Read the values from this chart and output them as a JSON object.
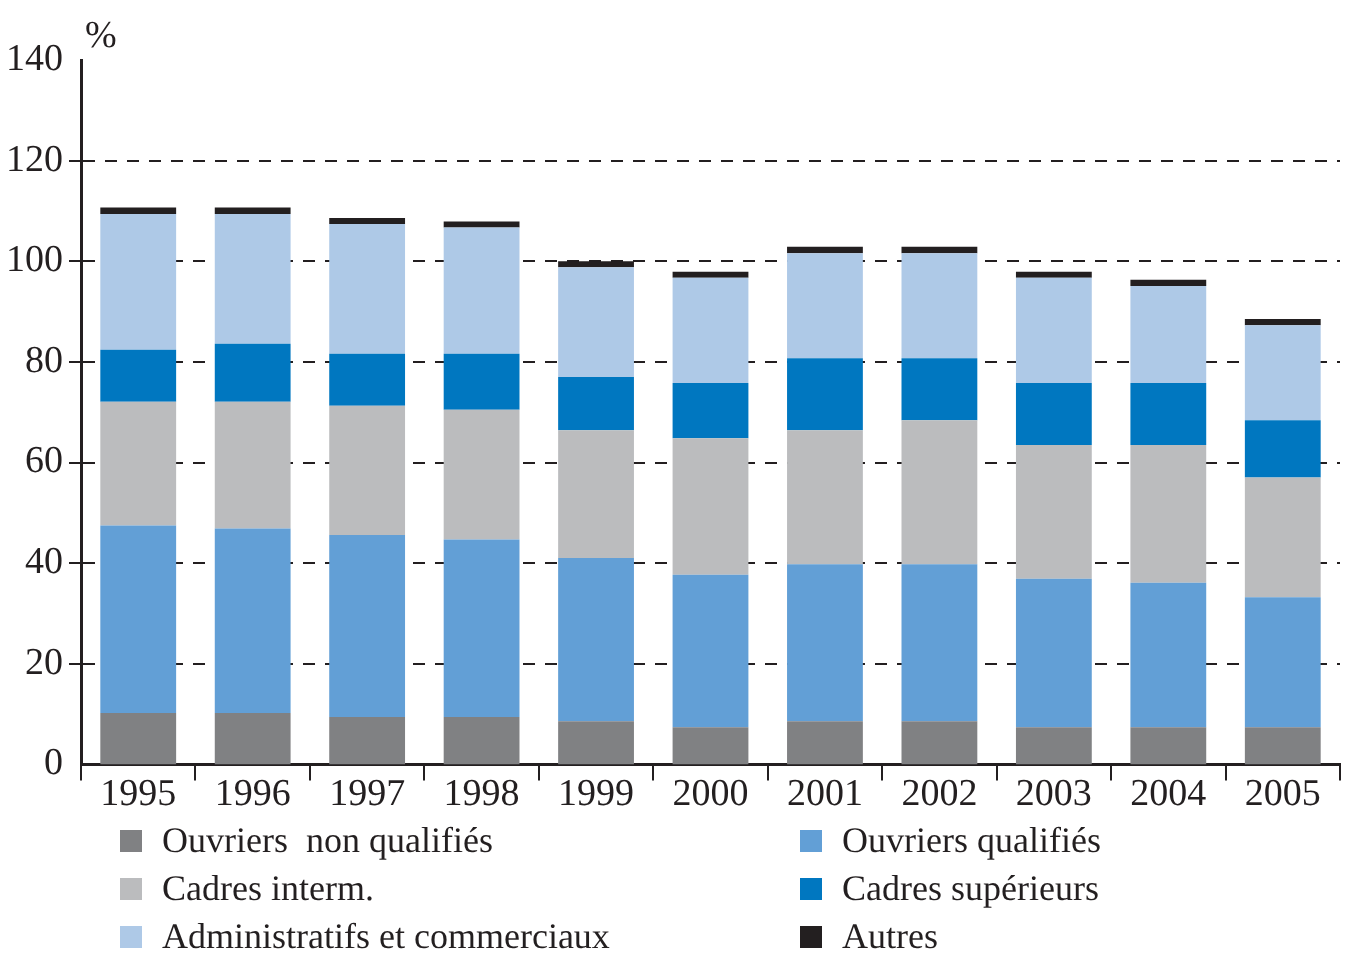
{
  "chart_data": {
    "type": "bar",
    "stacked": true,
    "ylabel": "%",
    "categories": [
      "1995",
      "1996",
      "1997",
      "1998",
      "1999",
      "2000",
      "2001",
      "2002",
      "2003",
      "2004",
      "2005"
    ],
    "ylim": [
      0,
      140
    ],
    "yticks": [
      0,
      20,
      40,
      60,
      80,
      100,
      120,
      140
    ],
    "grid": "y",
    "legend": "bottom",
    "series": [
      {
        "name": "Ouvriers  non qualifiés",
        "color": "#808183",
        "values": [
          10.2,
          10.2,
          9.4,
          9.4,
          8.6,
          7.4,
          8.6,
          8.6,
          7.4,
          7.4,
          7.4
        ]
      },
      {
        "name": "Ouvriers qualifiés",
        "color": "#629fd6",
        "values": [
          37.3,
          36.7,
          36.2,
          35.3,
          32.4,
          30.3,
          31.2,
          31.2,
          29.5,
          28.7,
          25.8
        ]
      },
      {
        "name": "Cadres interm.",
        "color": "#bbbcbe",
        "values": [
          24.6,
          25.2,
          25.7,
          25.8,
          25.4,
          27.1,
          26.6,
          28.6,
          26.6,
          27.4,
          23.8
        ]
      },
      {
        "name": "Cadres supérieurs",
        "color": "#0077c0",
        "values": [
          10.3,
          11.5,
          10.3,
          11.1,
          10.6,
          11.0,
          14.3,
          12.3,
          12.3,
          12.3,
          11.4
        ]
      },
      {
        "name": "Administratifs et commerciaux",
        "color": "#aec9e7",
        "values": [
          27.0,
          25.8,
          25.8,
          25.1,
          21.8,
          20.9,
          20.9,
          20.9,
          20.9,
          19.3,
          18.9
        ]
      },
      {
        "name": "Autres",
        "color": "#231f20",
        "values": [
          1.3,
          1.3,
          1.2,
          1.2,
          1.2,
          1.2,
          1.3,
          1.3,
          1.2,
          1.2,
          1.2
        ]
      }
    ]
  }
}
